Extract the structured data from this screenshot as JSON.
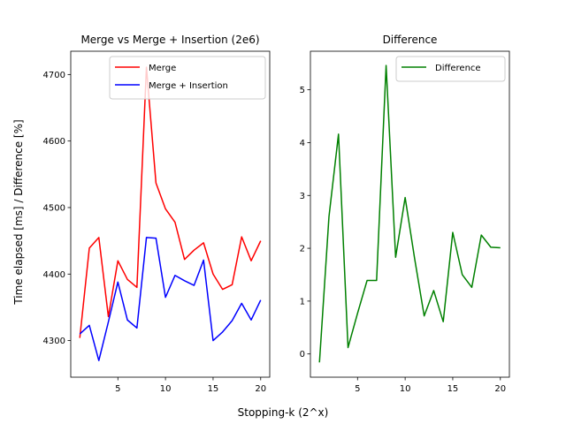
{
  "figure": {
    "ylabel": "Time elapsed [ms] / Difference [%]",
    "xlabel": "Stopping-k (2^x)"
  },
  "chart_data": [
    {
      "type": "line",
      "title": "Merge vs Merge + Insertion (2e6)",
      "x": [
        1,
        2,
        3,
        4,
        5,
        6,
        7,
        8,
        9,
        10,
        11,
        12,
        13,
        14,
        15,
        16,
        17,
        18,
        19,
        20
      ],
      "xlim": [
        0.05,
        20.95
      ],
      "ylim": [
        4245,
        4735
      ],
      "xticks": [
        5,
        10,
        15,
        20
      ],
      "yticks": [
        4300,
        4400,
        4500,
        4600,
        4700
      ],
      "grid": false,
      "legend": "top-right",
      "series": [
        {
          "name": "Merge",
          "color": "#ff0000",
          "values": [
            4304,
            4439,
            4455,
            4336,
            4420,
            4392,
            4380,
            4711,
            4537,
            4498,
            4478,
            4422,
            4436,
            4447,
            4400,
            4377,
            4384,
            4456,
            4420,
            4450
          ]
        },
        {
          "name": "Merge + Insertion",
          "color": "#0000ff",
          "values": [
            4310,
            4323,
            4270,
            4328,
            4388,
            4331,
            4319,
            4455,
            4454,
            4365,
            4398,
            4390,
            4383,
            4421,
            4300,
            4313,
            4330,
            4356,
            4331,
            4361
          ]
        }
      ]
    },
    {
      "type": "line",
      "title": "Difference",
      "x": [
        1,
        2,
        3,
        4,
        5,
        6,
        7,
        8,
        9,
        10,
        11,
        12,
        13,
        14,
        15,
        16,
        17,
        18,
        19,
        20
      ],
      "xlim": [
        0.05,
        20.95
      ],
      "ylim": [
        -0.44,
        5.73
      ],
      "xticks": [
        5,
        10,
        15,
        20
      ],
      "yticks": [
        0,
        1,
        2,
        3,
        4,
        5
      ],
      "grid": false,
      "legend": "top-right",
      "series": [
        {
          "name": "Difference",
          "color": "#008000",
          "values": [
            -0.16,
            2.6,
            4.16,
            0.12,
            0.77,
            1.39,
            1.39,
            5.46,
            1.83,
            2.96,
            1.8,
            0.72,
            1.2,
            0.61,
            2.3,
            1.5,
            1.26,
            2.25,
            2.02,
            2.01
          ]
        }
      ]
    }
  ]
}
